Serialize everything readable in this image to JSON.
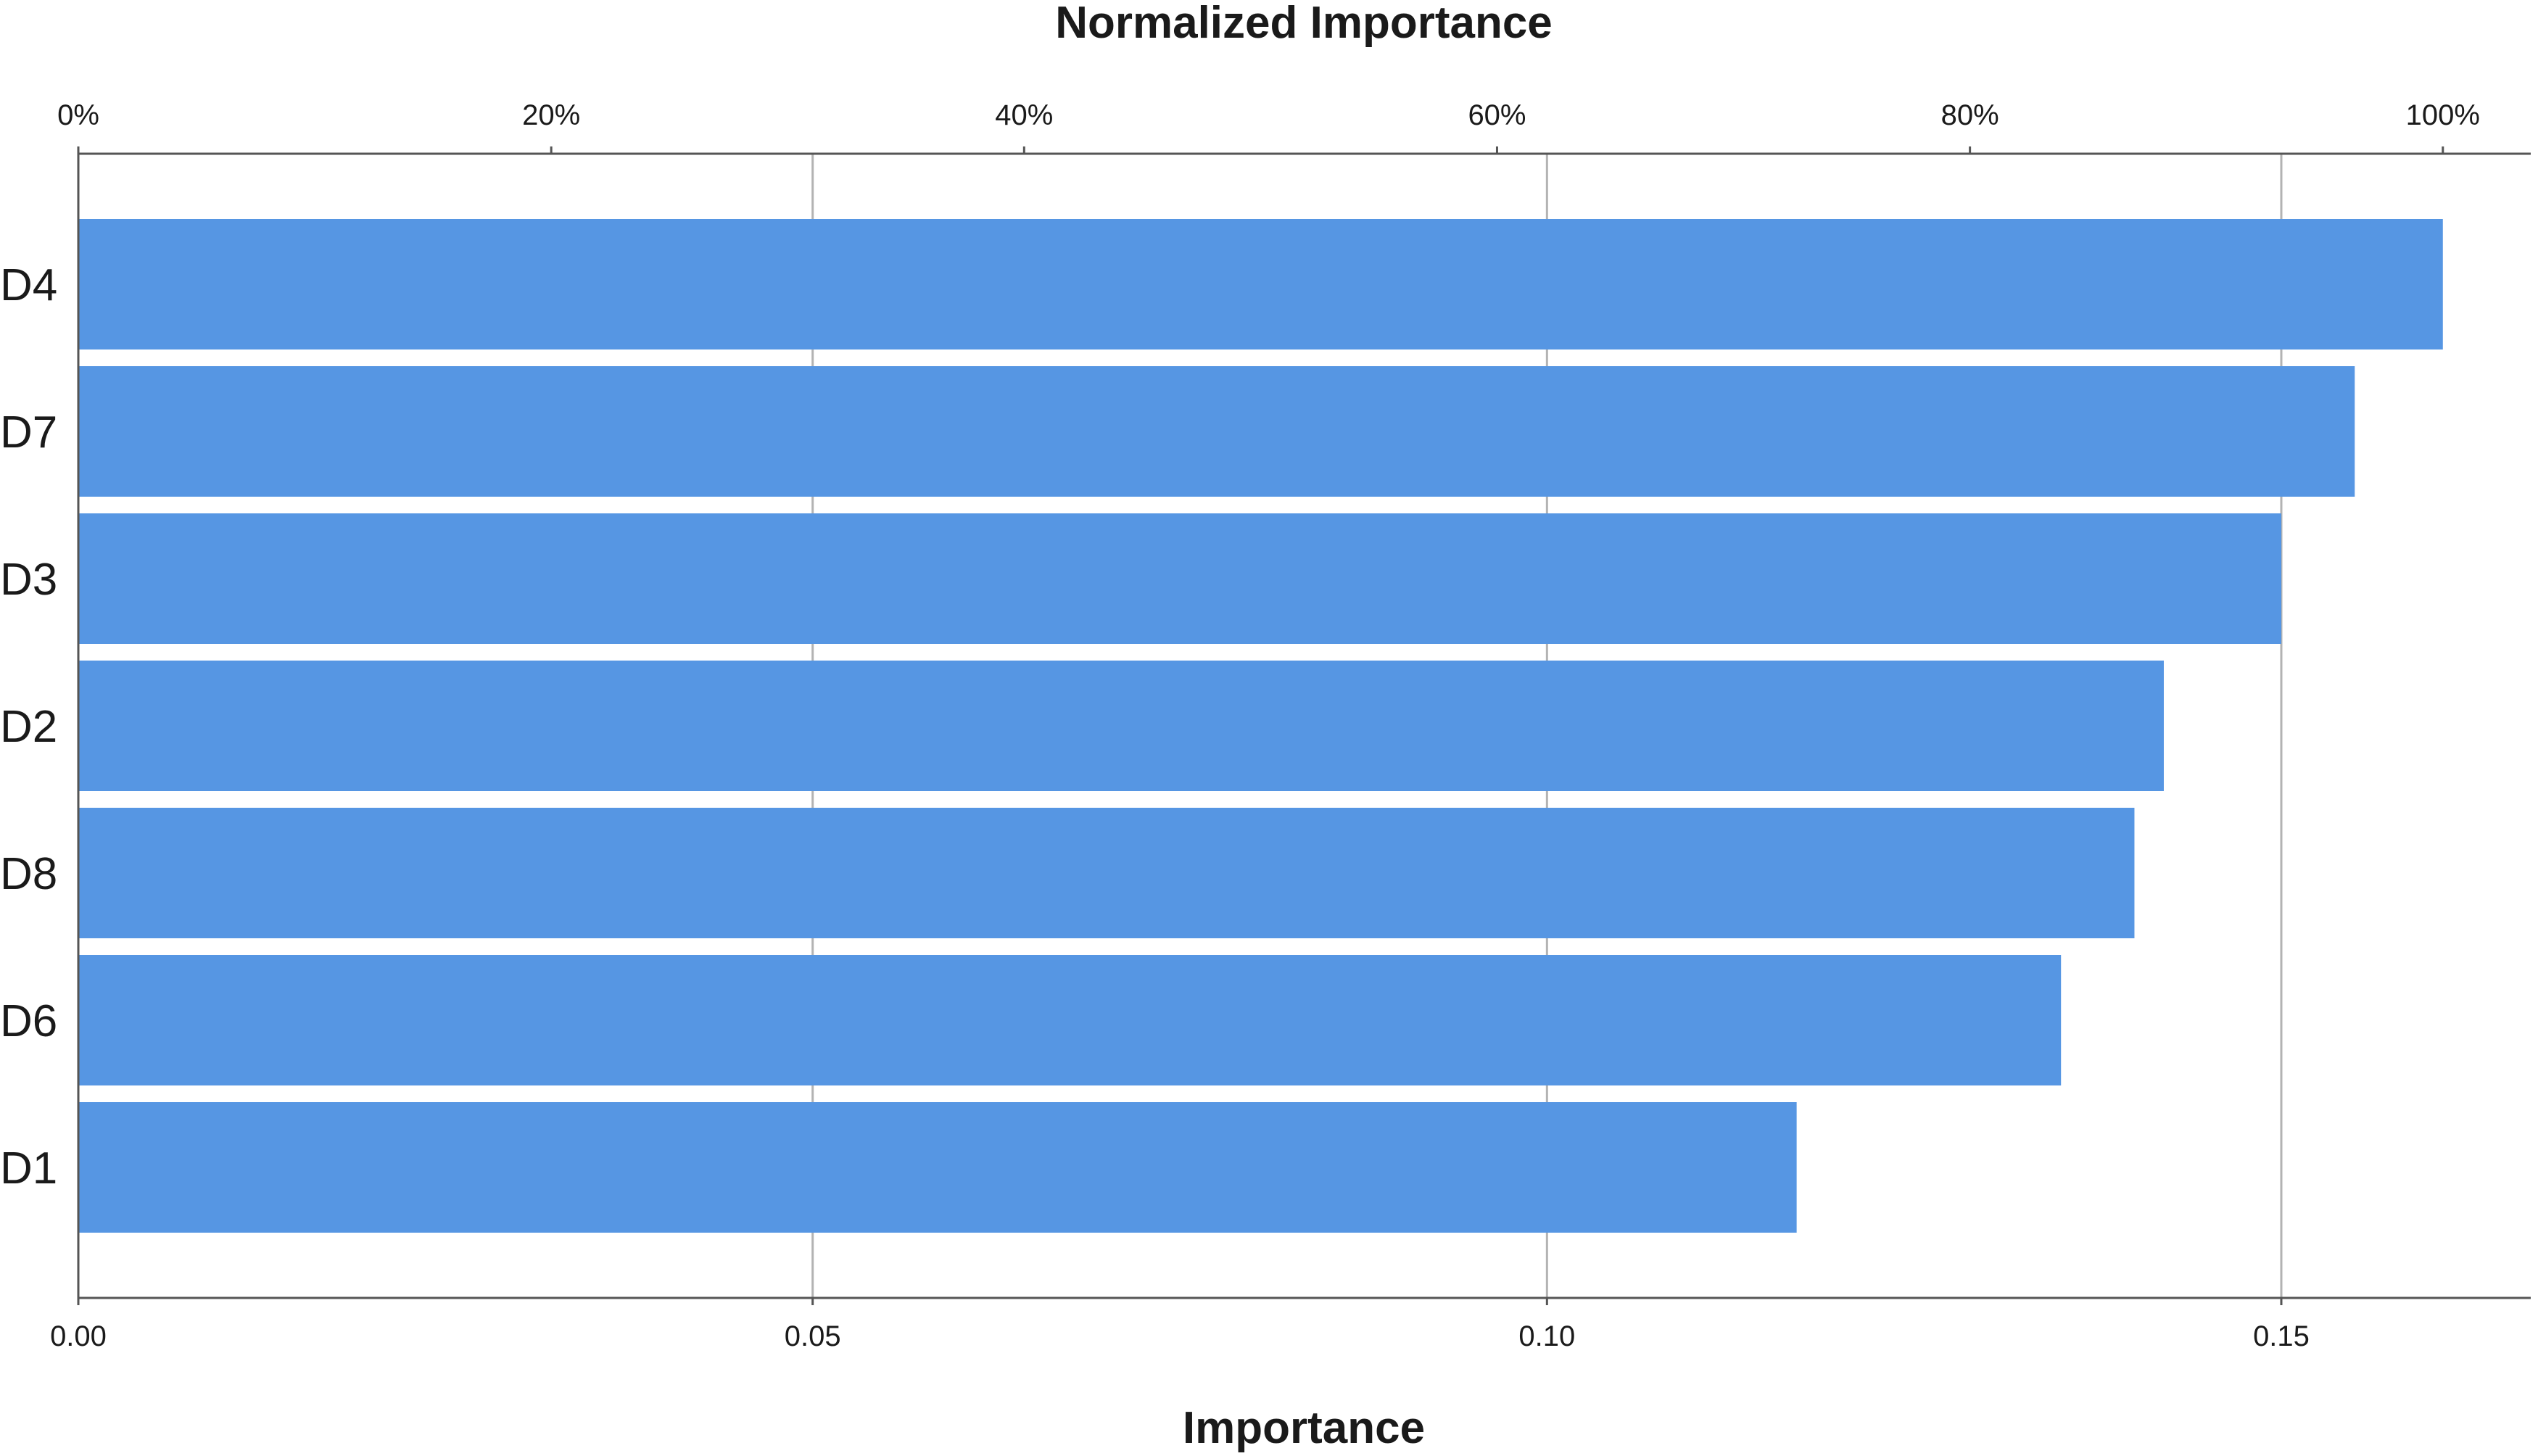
{
  "chart_data": {
    "type": "bar",
    "orientation": "horizontal",
    "categories": [
      "D4",
      "D7",
      "D3",
      "D2",
      "D8",
      "D6",
      "D1"
    ],
    "values": [
      0.161,
      0.155,
      0.15,
      0.142,
      0.14,
      0.135,
      0.117
    ],
    "normalized_percent": [
      100,
      96.1,
      93.0,
      87.9,
      86.6,
      83.7,
      72.5
    ],
    "xlabel": "Importance",
    "x2label": "Normalized Importance",
    "xlim": [
      0,
      0.18
    ],
    "xticks": [
      0,
      0.05,
      0.1,
      0.15
    ],
    "xtick_labels": [
      "0.00",
      "0.05",
      "0.10",
      "0.15"
    ],
    "x2ticks": [
      0,
      20,
      40,
      60,
      80,
      100
    ],
    "x2tick_labels": [
      "0%",
      "20%",
      "40%",
      "60%",
      "80%",
      "100%"
    ],
    "grid": true,
    "grid_axis": "x",
    "bar_color": "#5696e3",
    "grid_color": "#b3b3b3",
    "axis_color": "#555555"
  }
}
